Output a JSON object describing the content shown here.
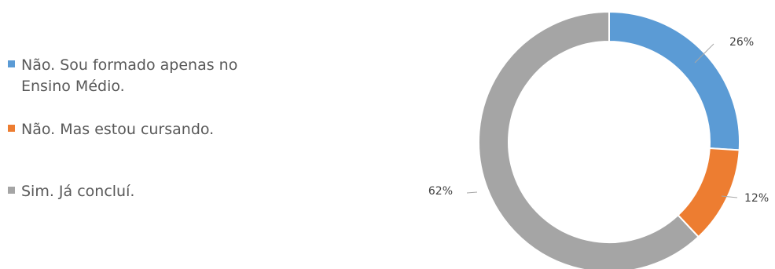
{
  "chart_data": {
    "type": "pie",
    "variant": "doughnut",
    "categories": [
      "Não. Sou formado apenas no Ensino Médio.",
      "Não. Mas estou cursando.",
      "Sim. Já concluí."
    ],
    "values": [
      26,
      12,
      62
    ],
    "data_labels": [
      "26%",
      "12%",
      "62%"
    ],
    "colors": [
      "#5B9BD5",
      "#ED7D31",
      "#A5A5A5"
    ],
    "legend_position": "left",
    "title": "",
    "xlabel": "",
    "ylabel": ""
  }
}
